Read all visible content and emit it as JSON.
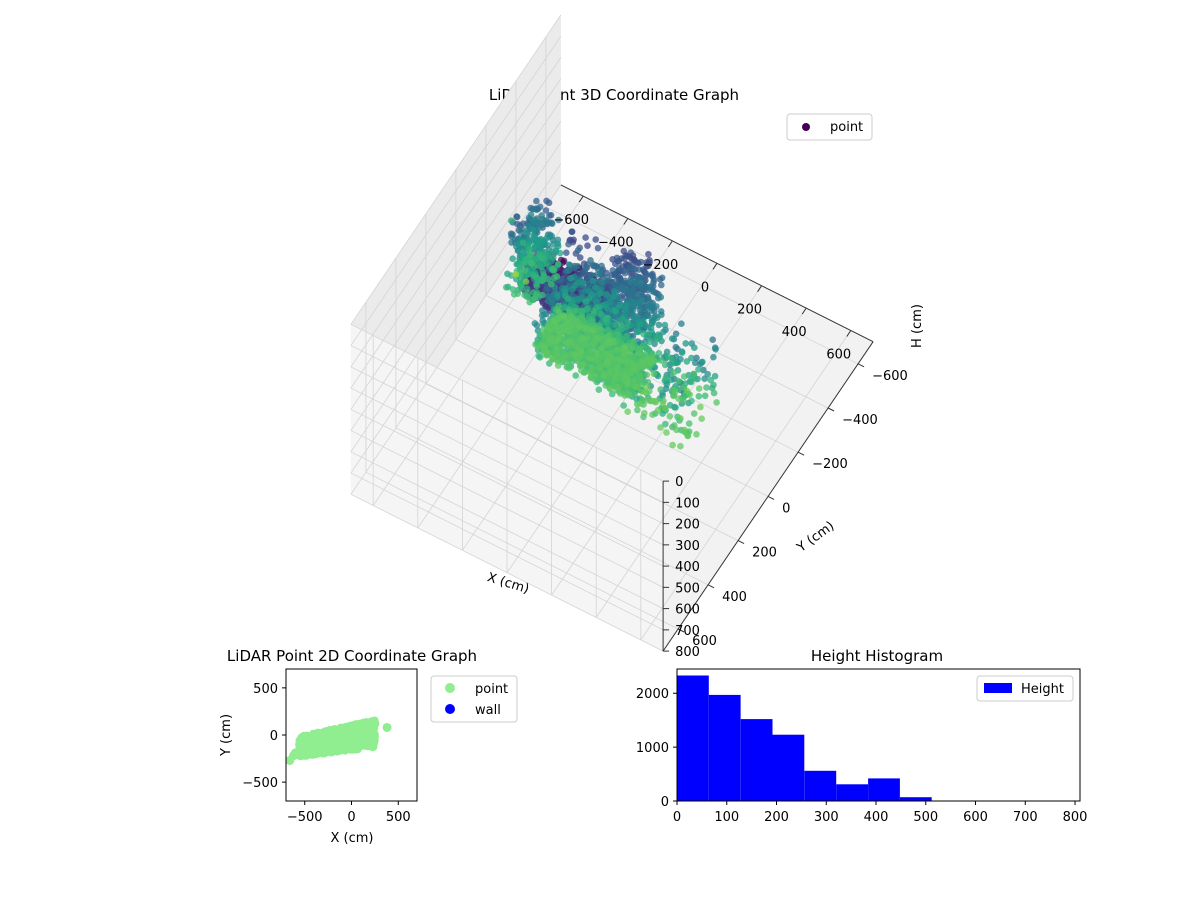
{
  "figure": {
    "background": "#ffffff"
  },
  "chart_data": [
    {
      "type": "scatter",
      "projection": "3d",
      "title": "LiDAR Point 3D Coordinate Graph",
      "xlabel": "X (cm)",
      "ylabel": "Y (cm)",
      "zlabel": "H (cm)",
      "xlim": [
        -700,
        700
      ],
      "ylim": [
        -700,
        700
      ],
      "zlim": [
        800,
        0
      ],
      "xticks": [
        "−600",
        "−400",
        "−200",
        "0",
        "200",
        "400",
        "600"
      ],
      "yticks": [
        "−600",
        "−400",
        "−200",
        "0",
        "200",
        "400",
        "600"
      ],
      "zticks": [
        "0",
        "100",
        "200",
        "300",
        "400",
        "500",
        "600",
        "700",
        "800"
      ],
      "colormap": "viridis",
      "color_by": "height",
      "grid": true,
      "legend": {
        "placement": "top-right",
        "entries": [
          {
            "label": "point",
            "color": "#440154"
          }
        ]
      },
      "series": [
        {
          "name": "point",
          "clusters": [
            {
              "x_range": [
                -320,
                120
              ],
              "y_range": [
                -120,
                60
              ],
              "h_range": [
                540,
                600
              ],
              "count": 700
            },
            {
              "x_range": [
                -280,
                150
              ],
              "y_range": [
                -140,
                120
              ],
              "h_range": [
                150,
                540
              ],
              "count": 900
            },
            {
              "x_range": [
                -260,
                60
              ],
              "y_range": [
                100,
                220
              ],
              "h_range": [
                20,
                140
              ],
              "count": 700
            },
            {
              "x_range": [
                -520,
                -380
              ],
              "y_range": [
                -230,
                -60
              ],
              "h_range": [
                220,
                560
              ],
              "count": 300
            },
            {
              "x_range": [
                120,
                420
              ],
              "y_range": [
                -120,
                130
              ],
              "h_range": [
                300,
                620
              ],
              "count": 220
            },
            {
              "x_range": [
                -40,
                120
              ],
              "y_range": [
                -180,
                0
              ],
              "h_range": [
                150,
                350
              ],
              "count": 150
            }
          ],
          "outliers": [
            {
              "x": -640,
              "y": -280,
              "h": 500
            },
            {
              "x": -560,
              "y": -240,
              "h": 520
            },
            {
              "x": -600,
              "y": -250,
              "h": 700
            },
            {
              "x": -520,
              "y": -200,
              "h": 640
            },
            {
              "x": 400,
              "y": 80,
              "h": 570
            }
          ]
        }
      ]
    },
    {
      "type": "scatter",
      "title": "LiDAR Point 2D Coordinate Graph",
      "xlabel": "X (cm)",
      "ylabel": "Y (cm)",
      "xlim": [
        -700,
        700
      ],
      "ylim": [
        -700,
        700
      ],
      "xticks": [
        "−500",
        "0",
        "500"
      ],
      "yticks": [
        "500",
        "0",
        "−500"
      ],
      "legend": {
        "placement": "outside-right",
        "entries": [
          {
            "label": "point",
            "color": "#90ee90"
          },
          {
            "label": "wall",
            "color": "#0000ff"
          }
        ]
      },
      "series": [
        {
          "name": "point",
          "color": "#90ee90",
          "region": {
            "x_range": [
              -560,
              250
            ],
            "y_range": [
              -230,
              170
            ],
            "count": 900
          },
          "extra_points": [
            {
              "x": -660,
              "y": -270
            },
            {
              "x": -620,
              "y": -220
            },
            {
              "x": -600,
              "y": -190
            },
            {
              "x": 380,
              "y": 80
            },
            {
              "x": 250,
              "y": 120
            },
            {
              "x": 230,
              "y": 20
            }
          ]
        },
        {
          "name": "wall",
          "color": "#0000ff",
          "points": []
        }
      ]
    },
    {
      "type": "bar",
      "title": "Height Histogram",
      "xlim": [
        0,
        810
      ],
      "ylim": [
        0,
        2450
      ],
      "xticks": [
        "0",
        "100",
        "200",
        "300",
        "400",
        "500",
        "600",
        "700",
        "800"
      ],
      "yticks": [
        "0",
        "1000",
        "2000"
      ],
      "bar_color": "#0000ff",
      "legend": {
        "placement": "top-right",
        "entries": [
          {
            "label": "Height",
            "color": "#0000ff"
          }
        ]
      },
      "series": [
        {
          "name": "Height",
          "bin_edges": [
            0,
            64,
            128,
            192,
            256,
            320,
            384,
            448,
            512,
            576,
            640,
            704,
            768,
            810
          ],
          "values": [
            2330,
            1970,
            1520,
            1230,
            560,
            310,
            420,
            70,
            0,
            0,
            0,
            0,
            0
          ]
        }
      ]
    }
  ]
}
